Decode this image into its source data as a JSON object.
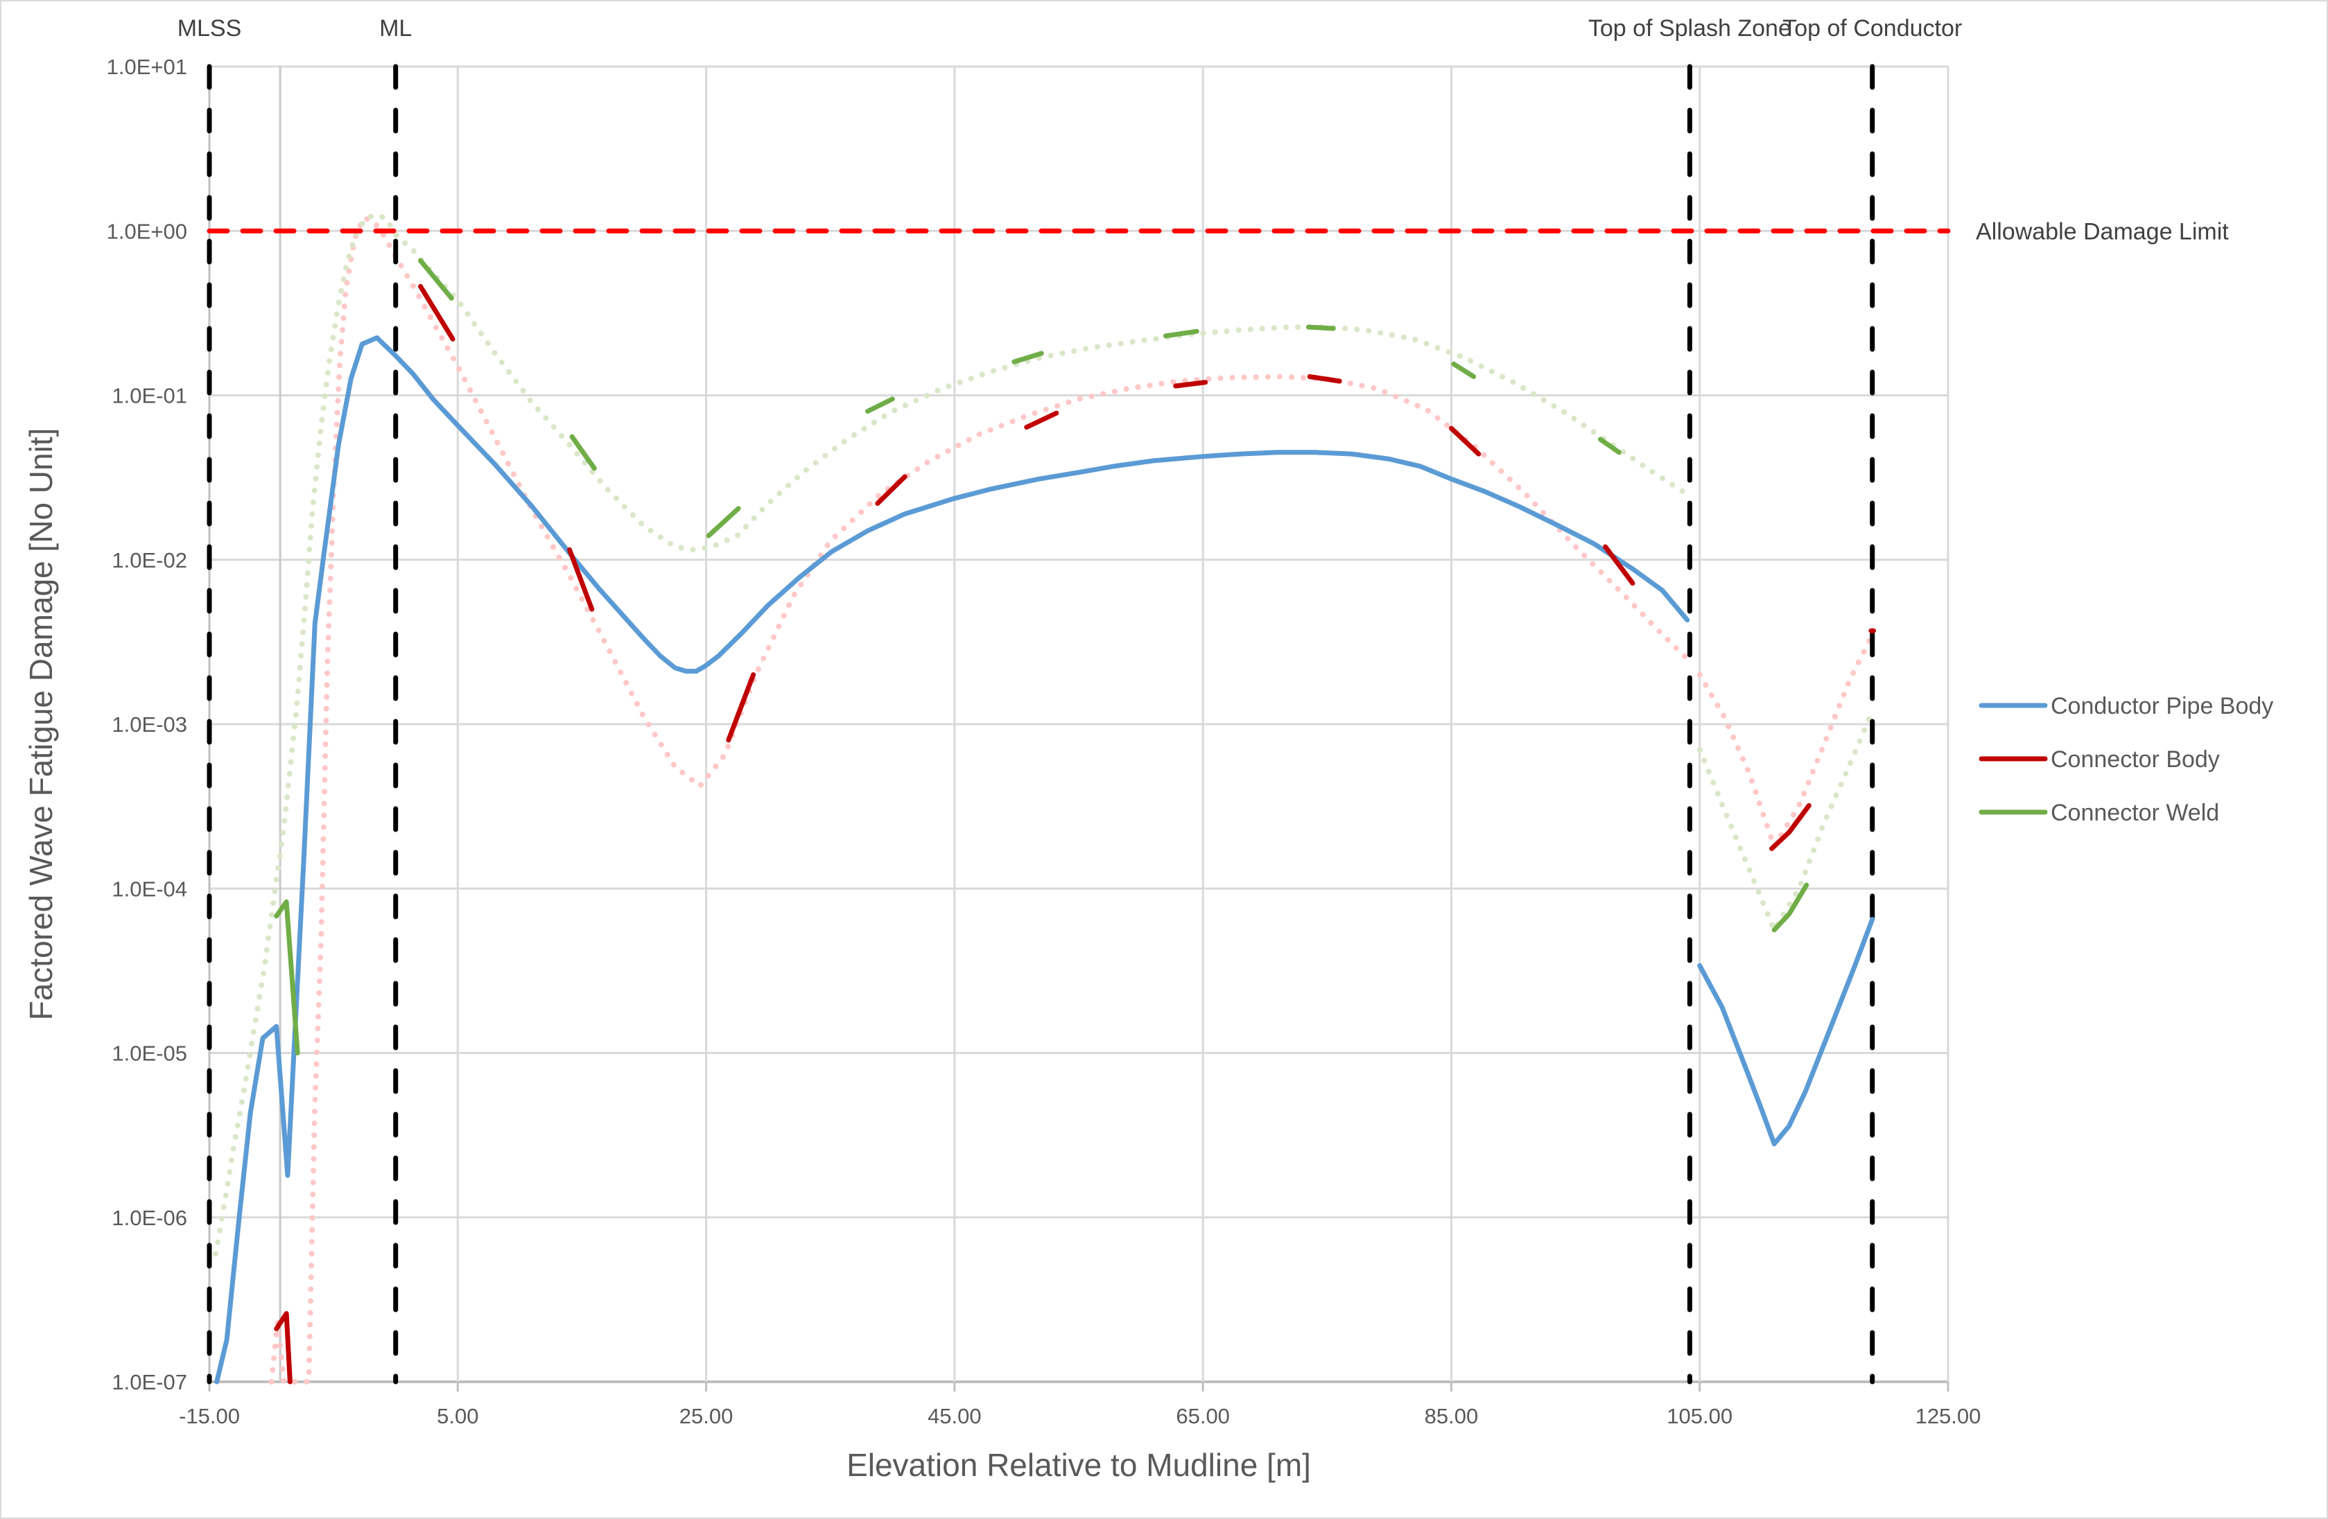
{
  "chart_data": {
    "type": "line",
    "title": "",
    "xlabel": "Elevation Relative to Mudline [m]",
    "ylabel": "Factored Wave Fatigue Damage [No Unit]",
    "xlim": [
      -15,
      125
    ],
    "ylim": [
      1e-07,
      10
    ],
    "yscale": "log",
    "grid": true,
    "x_ticks": [
      -15,
      5,
      25,
      45,
      65,
      85,
      105,
      125
    ],
    "x_tick_labels": [
      "-15.00",
      "5.00",
      "25.00",
      "45.00",
      "65.00",
      "85.00",
      "105.00",
      "125.00"
    ],
    "y_ticks": [
      1e-07,
      1e-06,
      1e-05,
      0.0001,
      0.001,
      0.01,
      0.1,
      1,
      10
    ],
    "y_tick_labels": [
      "1.0E-07",
      "1.0E-06",
      "1.0E-05",
      "1.0E-04",
      "1.0E-03",
      "1.0E-02",
      "1.0E-01",
      "1.0E+00",
      "1.0E+01"
    ],
    "legend": {
      "position": "right",
      "entries": [
        {
          "label": "Conductor Pipe Body",
          "color": "#5b9bd5"
        },
        {
          "label": "Connector Body",
          "color": "#c00000"
        },
        {
          "label": "Connector Weld",
          "color": "#70ad47"
        }
      ]
    },
    "reference_lines": {
      "horizontal": [
        {
          "label": "Allowable Damage Limit",
          "y": 1.0,
          "color": "#ff0000",
          "style": "dashed"
        }
      ],
      "vertical": [
        {
          "label": "MLSS",
          "x": -15.0,
          "color": "#000000",
          "style": "dashed"
        },
        {
          "label": "ML",
          "x": 0.0,
          "color": "#000000",
          "style": "dashed"
        },
        {
          "label": "Top of Splash Zone",
          "x": 104.2,
          "color": "#000000",
          "style": "dashed"
        },
        {
          "label": "Top of Conductor",
          "x": 118.9,
          "color": "#000000",
          "style": "dashed"
        }
      ]
    },
    "series": [
      {
        "name": "Conductor Pipe Body",
        "color": "#5b9bd5",
        "style": "solid",
        "segments": [
          {
            "x": [
              -14.4,
              -13.6,
              -12.6,
              -11.7,
              -10.7,
              -9.6,
              -8.7,
              -7.4,
              -6.5,
              -5.8,
              -4.6,
              -3.6,
              -2.7,
              -1.5,
              0,
              1.4,
              3.0,
              4.8,
              8.0,
              11.0,
              14.2,
              16.5,
              18.4,
              20.0,
              21.3,
              22.5,
              23.4,
              24.2,
              24.9,
              26.0,
              27.9,
              30.0,
              32.5,
              35.1,
              38.0,
              41.0,
              44.9,
              48.0,
              51.8,
              55.0,
              57.8,
              61.0,
              65.0,
              68.0,
              71.0,
              74.0,
              77.0,
              80.0,
              82.5,
              85.0,
              87.7,
              90.5,
              93.7,
              96.5,
              99.6,
              102.0,
              104.0
            ],
            "y": [
              1e-07,
              1.8e-07,
              1e-06,
              4.3e-06,
              1.23e-05,
              1.45e-05,
              1.8e-06,
              0.000148,
              0.0041,
              0.0105,
              0.05,
              0.126,
              0.205,
              0.224,
              0.174,
              0.135,
              0.095,
              0.068,
              0.038,
              0.021,
              0.0105,
              0.0065,
              0.0045,
              0.0033,
              0.0026,
              0.0022,
              0.0021,
              0.0021,
              0.00225,
              0.0026,
              0.0036,
              0.0053,
              0.0078,
              0.0112,
              0.015,
              0.019,
              0.0235,
              0.027,
              0.031,
              0.034,
              0.037,
              0.04,
              0.0425,
              0.044,
              0.045,
              0.045,
              0.044,
              0.041,
              0.037,
              0.031,
              0.026,
              0.021,
              0.016,
              0.0125,
              0.0088,
              0.0065,
              0.0043
            ]
          },
          {
            "x": [
              105.0,
              106.8,
              108.6,
              110.0,
              111.0,
              112.2,
              113.5,
              115.5,
              117.5,
              118.9
            ],
            "y": [
              3.4e-05,
              1.9e-05,
              8.5e-06,
              4.5e-06,
              2.8e-06,
              3.6e-06,
              5.8e-06,
              1.4e-05,
              3.4e-05,
              6.5e-05
            ]
          }
        ]
      },
      {
        "name": "Connector Body",
        "color": "#c00000",
        "style": "dashed-segments-over-dotted",
        "dotted_envelope": {
          "color": "#ffc7c7",
          "segments": [
            {
              "x": [
                -10.0,
                -9.5,
                -9.0,
                -8.5,
                -8.0,
                -7.5,
                -7.0,
                -6.5,
                -6.0,
                -5.5,
                -5.0,
                -4.5,
                -4.0,
                -3.3,
                -2.6,
                -1.8,
                -1.0,
                0.0,
                1.5,
                3.0,
                5.0,
                8.0,
                11.0,
                14.0,
                17.0,
                20.0,
                22.5,
                24.5,
                26.5,
                29.0,
                32.0,
                35.0,
                39.0,
                43.0,
                47.0,
                51.0,
                55.0,
                59.0,
                63.0,
                67.0,
                71.0,
                75.0,
                79.0,
                83.0,
                87.0,
                91.0,
                95.0,
                99.0,
                102.0,
                104.0
              ],
              "y": [
                1e-07,
                2.3e-07,
                1e-07,
                1e-07,
                1e-07,
                1e-07,
                1e-07,
                5e-06,
                5e-05,
                0.0023,
                0.025,
                0.16,
                0.45,
                0.9,
                1.2,
                1.15,
                0.95,
                0.7,
                0.45,
                0.28,
                0.15,
                0.055,
                0.02,
                0.008,
                0.003,
                0.0011,
                0.00055,
                0.00042,
                0.00065,
                0.002,
                0.006,
                0.013,
                0.025,
                0.04,
                0.058,
                0.076,
                0.095,
                0.11,
                0.122,
                0.128,
                0.13,
                0.126,
                0.11,
                0.082,
                0.048,
                0.025,
                0.012,
                0.006,
                0.0035,
                0.0025
              ]
            },
            {
              "x": [
                105.0,
                107.0,
                109.0,
                111.0,
                113.0,
                115.0,
                117.0,
                118.9
              ],
              "y": [
                0.002,
                0.0011,
                0.0005,
                0.00018,
                0.00032,
                0.00075,
                0.0018,
                0.0035
              ]
            }
          ]
        },
        "solid_segments": [
          {
            "x": [
              -9.6,
              -8.8,
              -8.5
            ],
            "y": [
              2.1e-07,
              2.6e-07,
              1e-07
            ]
          },
          {
            "x": [
              2.0,
              4.6
            ],
            "y": [
              0.46,
              0.22
            ]
          },
          {
            "x": [
              14.0,
              15.8
            ],
            "y": [
              0.0115,
              0.005
            ]
          },
          {
            "x": [
              26.8,
              28.8
            ],
            "y": [
              0.0008,
              0.002
            ]
          },
          {
            "x": [
              38.8,
              41.0
            ],
            "y": [
              0.022,
              0.032
            ]
          },
          {
            "x": [
              50.8,
              53.2
            ],
            "y": [
              0.064,
              0.078
            ]
          },
          {
            "x": [
              62.8,
              65.2
            ],
            "y": [
              0.114,
              0.12
            ]
          },
          {
            "x": [
              73.6,
              76.0
            ],
            "y": [
              0.13,
              0.122
            ]
          },
          {
            "x": [
              85.0,
              87.2
            ],
            "y": [
              0.063,
              0.044
            ]
          },
          {
            "x": [
              97.4,
              99.6
            ],
            "y": [
              0.012,
              0.0072
            ]
          },
          {
            "x": [
              110.8,
              112.2,
              113.8
            ],
            "y": [
              0.000175,
              0.00022,
              0.00032
            ]
          },
          {
            "x": [
              118.8,
              119.0
            ],
            "y": [
              0.0037,
              0.0037
            ]
          }
        ]
      },
      {
        "name": "Connector Weld",
        "color": "#70ad47",
        "style": "dashed-segments-over-dotted",
        "dotted_envelope": {
          "color": "#d9e7c8",
          "segments": [
            {
              "x": [
                -14.5,
                -13.8,
                -13.0,
                -12.2,
                -11.4,
                -10.6,
                -10.0,
                -9.0,
                -8.0,
                -7.3,
                -6.7,
                -6.0,
                -5.3,
                -4.6,
                -3.9,
                -3.2,
                -2.4,
                -1.6,
                -0.8,
                0.0,
                1.5,
                3.0,
                5.0,
                8.0,
                11.0,
                14.0,
                17.0,
                20.0,
                22.5,
                24.0,
                25.5,
                27.5,
                30.0,
                33.0,
                36.5,
                40.0,
                44.0,
                48.0,
                52.0,
                56.0,
                60.0,
                64.0,
                68.0,
                72.0,
                75.0,
                78.0,
                82.0,
                86.0,
                90.0,
                94.0,
                98.0,
                101.0,
                104.0
              ],
              "y": [
                6e-07,
                1.2e-06,
                2.8e-06,
                6e-06,
                1.4e-05,
                3.2e-05,
                6.8e-05,
                0.00024,
                0.0012,
                0.005,
                0.02,
                0.065,
                0.17,
                0.36,
                0.65,
                0.95,
                1.2,
                1.25,
                1.2,
                0.95,
                0.75,
                0.55,
                0.38,
                0.18,
                0.09,
                0.05,
                0.027,
                0.016,
                0.012,
                0.0115,
                0.012,
                0.014,
                0.022,
                0.035,
                0.055,
                0.08,
                0.11,
                0.14,
                0.17,
                0.195,
                0.215,
                0.235,
                0.25,
                0.26,
                0.26,
                0.25,
                0.22,
                0.17,
                0.12,
                0.08,
                0.05,
                0.035,
                0.025
              ]
            },
            {
              "x": [
                105.0,
                107.0,
                109.0,
                111.0,
                113.0,
                115.0,
                117.0,
                118.9
              ],
              "y": [
                0.0007,
                0.0003,
                0.00013,
                5.6e-05,
                0.0001,
                0.00025,
                0.00055,
                0.0012
              ]
            }
          ]
        },
        "solid_segments": [
          {
            "x": [
              -9.6,
              -8.8,
              -7.9
            ],
            "y": [
              6.8e-05,
              8.3e-05,
              1e-05
            ]
          },
          {
            "x": [
              2.0,
              4.5
            ],
            "y": [
              0.66,
              0.39
            ]
          },
          {
            "x": [
              14.2,
              16.0
            ],
            "y": [
              0.056,
              0.036
            ]
          },
          {
            "x": [
              25.2,
              27.6
            ],
            "y": [
              0.014,
              0.0205
            ]
          },
          {
            "x": [
              38.0,
              40.0
            ],
            "y": [
              0.08,
              0.095
            ]
          },
          {
            "x": [
              49.8,
              52.0
            ],
            "y": [
              0.16,
              0.18
            ]
          },
          {
            "x": [
              62.0,
              64.5
            ],
            "y": [
              0.23,
              0.245
            ]
          },
          {
            "x": [
              73.5,
              75.5
            ],
            "y": [
              0.26,
              0.255
            ]
          },
          {
            "x": [
              85.2,
              86.8
            ],
            "y": [
              0.155,
              0.13
            ]
          },
          {
            "x": [
              97.0,
              98.5
            ],
            "y": [
              0.054,
              0.045
            ]
          },
          {
            "x": [
              111.0,
              112.2,
              113.6
            ],
            "y": [
              5.6e-05,
              7e-05,
              0.000105
            ]
          }
        ]
      }
    ]
  }
}
